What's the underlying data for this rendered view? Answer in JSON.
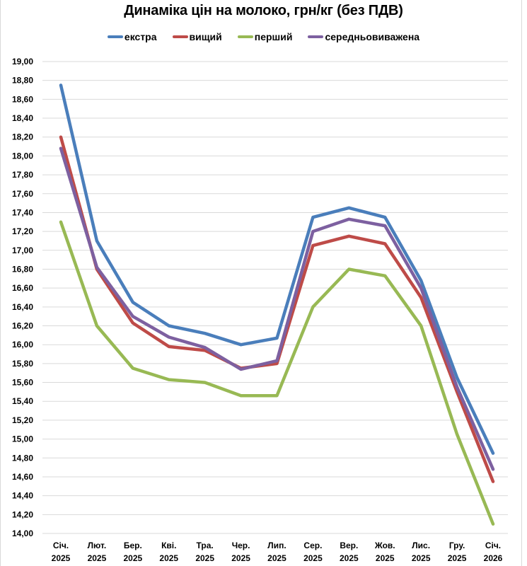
{
  "chart_data": {
    "type": "line",
    "title": "Динаміка цін на молоко, грн/кг (без ПДВ)",
    "xlabel": "",
    "ylabel": "",
    "ylim": [
      14.0,
      19.0
    ],
    "ytick_step": 0.2,
    "yticks": [
      "14,00",
      "14,20",
      "14,40",
      "14,60",
      "14,80",
      "15,00",
      "15,20",
      "15,40",
      "15,60",
      "15,80",
      "16,00",
      "16,20",
      "16,40",
      "16,60",
      "16,80",
      "17,00",
      "17,20",
      "17,40",
      "17,60",
      "17,80",
      "18,00",
      "18,20",
      "18,40",
      "18,60",
      "18,80",
      "19,00"
    ],
    "grid": true,
    "legend_position": "top",
    "categories": [
      [
        "Січ.",
        "2025"
      ],
      [
        "Лют.",
        "2025"
      ],
      [
        "Бер.",
        "2025"
      ],
      [
        "Кві.",
        "2025"
      ],
      [
        "Тра.",
        "2025"
      ],
      [
        "Чер.",
        "2025"
      ],
      [
        "Лип.",
        "2025"
      ],
      [
        "Сер.",
        "2025"
      ],
      [
        "Вер.",
        "2025"
      ],
      [
        "Жов.",
        "2025"
      ],
      [
        "Лис.",
        "2025"
      ],
      [
        "Гру.",
        "2025"
      ],
      [
        "Січ.",
        "2026"
      ]
    ],
    "series": [
      {
        "name": "екстра",
        "color": "#4a7ebb",
        "values": [
          18.75,
          17.1,
          16.45,
          16.2,
          16.12,
          16.0,
          16.07,
          17.35,
          17.45,
          17.35,
          16.68,
          15.65,
          14.85
        ]
      },
      {
        "name": "вищий",
        "color": "#be4b48",
        "values": [
          18.2,
          16.8,
          16.23,
          15.98,
          15.94,
          15.75,
          15.8,
          17.05,
          17.15,
          17.07,
          16.5,
          15.5,
          14.55
        ]
      },
      {
        "name": "перший",
        "color": "#98b954",
        "values": [
          17.3,
          16.2,
          15.75,
          15.63,
          15.6,
          15.46,
          15.46,
          16.4,
          16.8,
          16.73,
          16.2,
          15.05,
          14.1
        ]
      },
      {
        "name": "середньовиважена",
        "color": "#7d60a0",
        "values": [
          18.08,
          16.82,
          16.3,
          16.08,
          15.97,
          15.74,
          15.83,
          17.2,
          17.33,
          17.26,
          16.6,
          15.55,
          14.68
        ]
      }
    ]
  }
}
